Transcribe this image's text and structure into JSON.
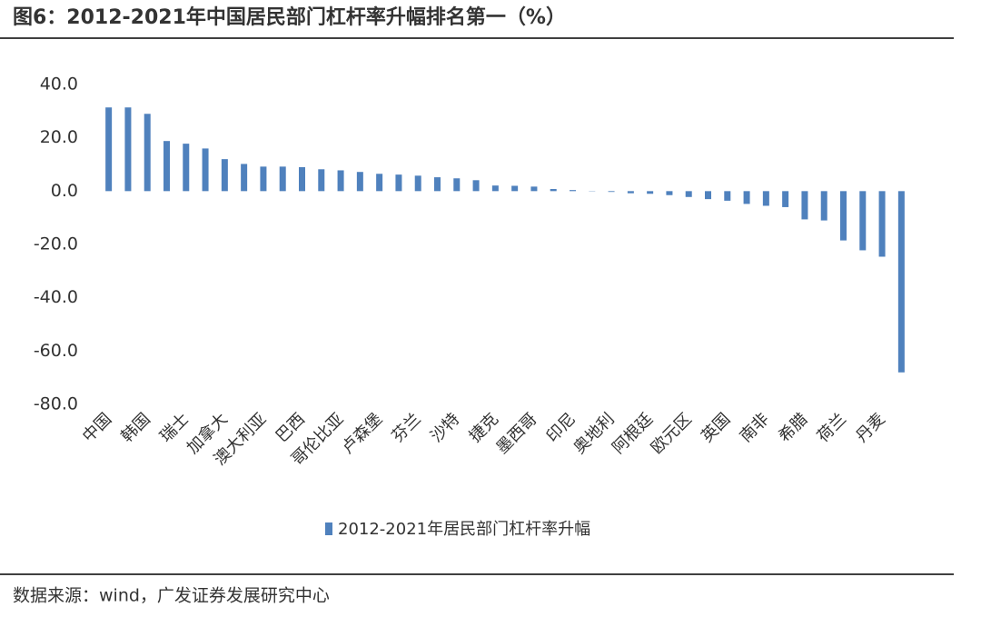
{
  "chart_data": {
    "type": "bar",
    "title": "图6：2012-2021年中国居民部门杠杆率升幅排名第一（%）",
    "source": "数据来源：wind，广发证券发展研究中心",
    "categories": [
      "中国",
      null,
      "韩国",
      null,
      "瑞士",
      null,
      "加拿大",
      null,
      "澳大利亚",
      null,
      "巴西",
      null,
      "哥伦比亚",
      null,
      "卢森堡",
      null,
      "芬兰",
      null,
      "沙特",
      null,
      "捷克",
      null,
      "墨西哥",
      null,
      "印尼",
      null,
      "奥地利",
      null,
      "阿根廷",
      null,
      "欧元区",
      null,
      "英国",
      null,
      "南非",
      null,
      "希腊",
      null,
      "荷兰",
      null,
      "丹麦",
      null
    ],
    "series": [
      {
        "name": "2012-2021年居民部门杠杆率升幅",
        "color": "#4f81bd",
        "values": [
          31.4,
          31.4,
          29,
          18.8,
          17.8,
          16,
          12,
          10.2,
          9.2,
          9.2,
          9,
          8.2,
          7.8,
          7.2,
          6.5,
          6.2,
          5.8,
          5.2,
          4.8,
          4.1,
          2.1,
          2,
          1.7,
          0.8,
          0.4,
          0.1,
          -0.3,
          -0.8,
          -1,
          -1.5,
          -2.2,
          -3,
          -3.6,
          -4.8,
          -5.5,
          -6,
          -10.6,
          -11,
          -18.5,
          -22.2,
          -24.6,
          -68
        ]
      }
    ],
    "ylim": [
      -80,
      40
    ],
    "yticks": [
      {
        "value": -80,
        "label": "-80.0"
      },
      {
        "value": -60,
        "label": "-60.0"
      },
      {
        "value": -40,
        "label": "-40.0"
      },
      {
        "value": -20,
        "label": "-20.0"
      },
      {
        "value": 0,
        "label": "0.0"
      },
      {
        "value": 20,
        "label": "20.0"
      },
      {
        "value": 40,
        "label": "40.0"
      }
    ],
    "legend": "bottom"
  }
}
